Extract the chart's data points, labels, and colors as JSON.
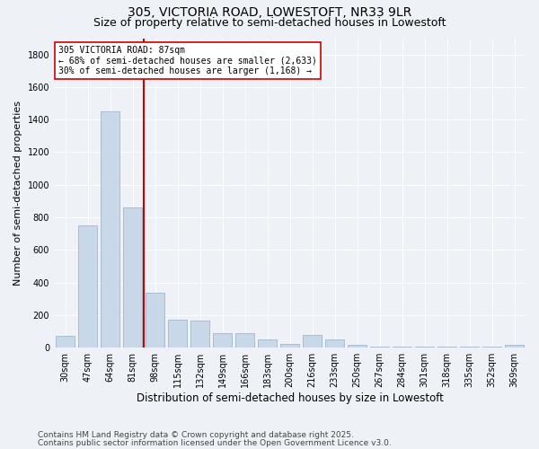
{
  "title_line1": "305, VICTORIA ROAD, LOWESTOFT, NR33 9LR",
  "title_line2": "Size of property relative to semi-detached houses in Lowestoft",
  "xlabel": "Distribution of semi-detached houses by size in Lowestoft",
  "ylabel": "Number of semi-detached properties",
  "categories": [
    "30sqm",
    "47sqm",
    "64sqm",
    "81sqm",
    "98sqm",
    "115sqm",
    "132sqm",
    "149sqm",
    "166sqm",
    "183sqm",
    "200sqm",
    "216sqm",
    "233sqm",
    "250sqm",
    "267sqm",
    "284sqm",
    "301sqm",
    "318sqm",
    "335sqm",
    "352sqm",
    "369sqm"
  ],
  "values": [
    75,
    750,
    1450,
    860,
    340,
    170,
    165,
    90,
    90,
    50,
    25,
    80,
    50,
    15,
    5,
    5,
    5,
    5,
    5,
    5,
    15
  ],
  "bar_color": "#c8d8e8",
  "bar_edge_color": "#a0b8cc",
  "vline_x_index": 3.5,
  "vline_color": "#cc0000",
  "annotation_line1": "305 VICTORIA ROAD: 87sqm",
  "annotation_line2": "← 68% of semi-detached houses are smaller (2,633)",
  "annotation_line3": "30% of semi-detached houses are larger (1,168) →",
  "annotation_box_color": "#ffffff",
  "annotation_box_edge": "#cc0000",
  "ylim": [
    0,
    1900
  ],
  "yticks": [
    0,
    200,
    400,
    600,
    800,
    1000,
    1200,
    1400,
    1600,
    1800
  ],
  "background_color": "#eef2f7",
  "grid_color": "#ffffff",
  "footer_line1": "Contains HM Land Registry data © Crown copyright and database right 2025.",
  "footer_line2": "Contains public sector information licensed under the Open Government Licence v3.0.",
  "title1_fontsize": 10,
  "title2_fontsize": 9,
  "xlabel_fontsize": 8.5,
  "ylabel_fontsize": 8,
  "tick_fontsize": 7,
  "annotation_fontsize": 7,
  "footer_fontsize": 6.5
}
